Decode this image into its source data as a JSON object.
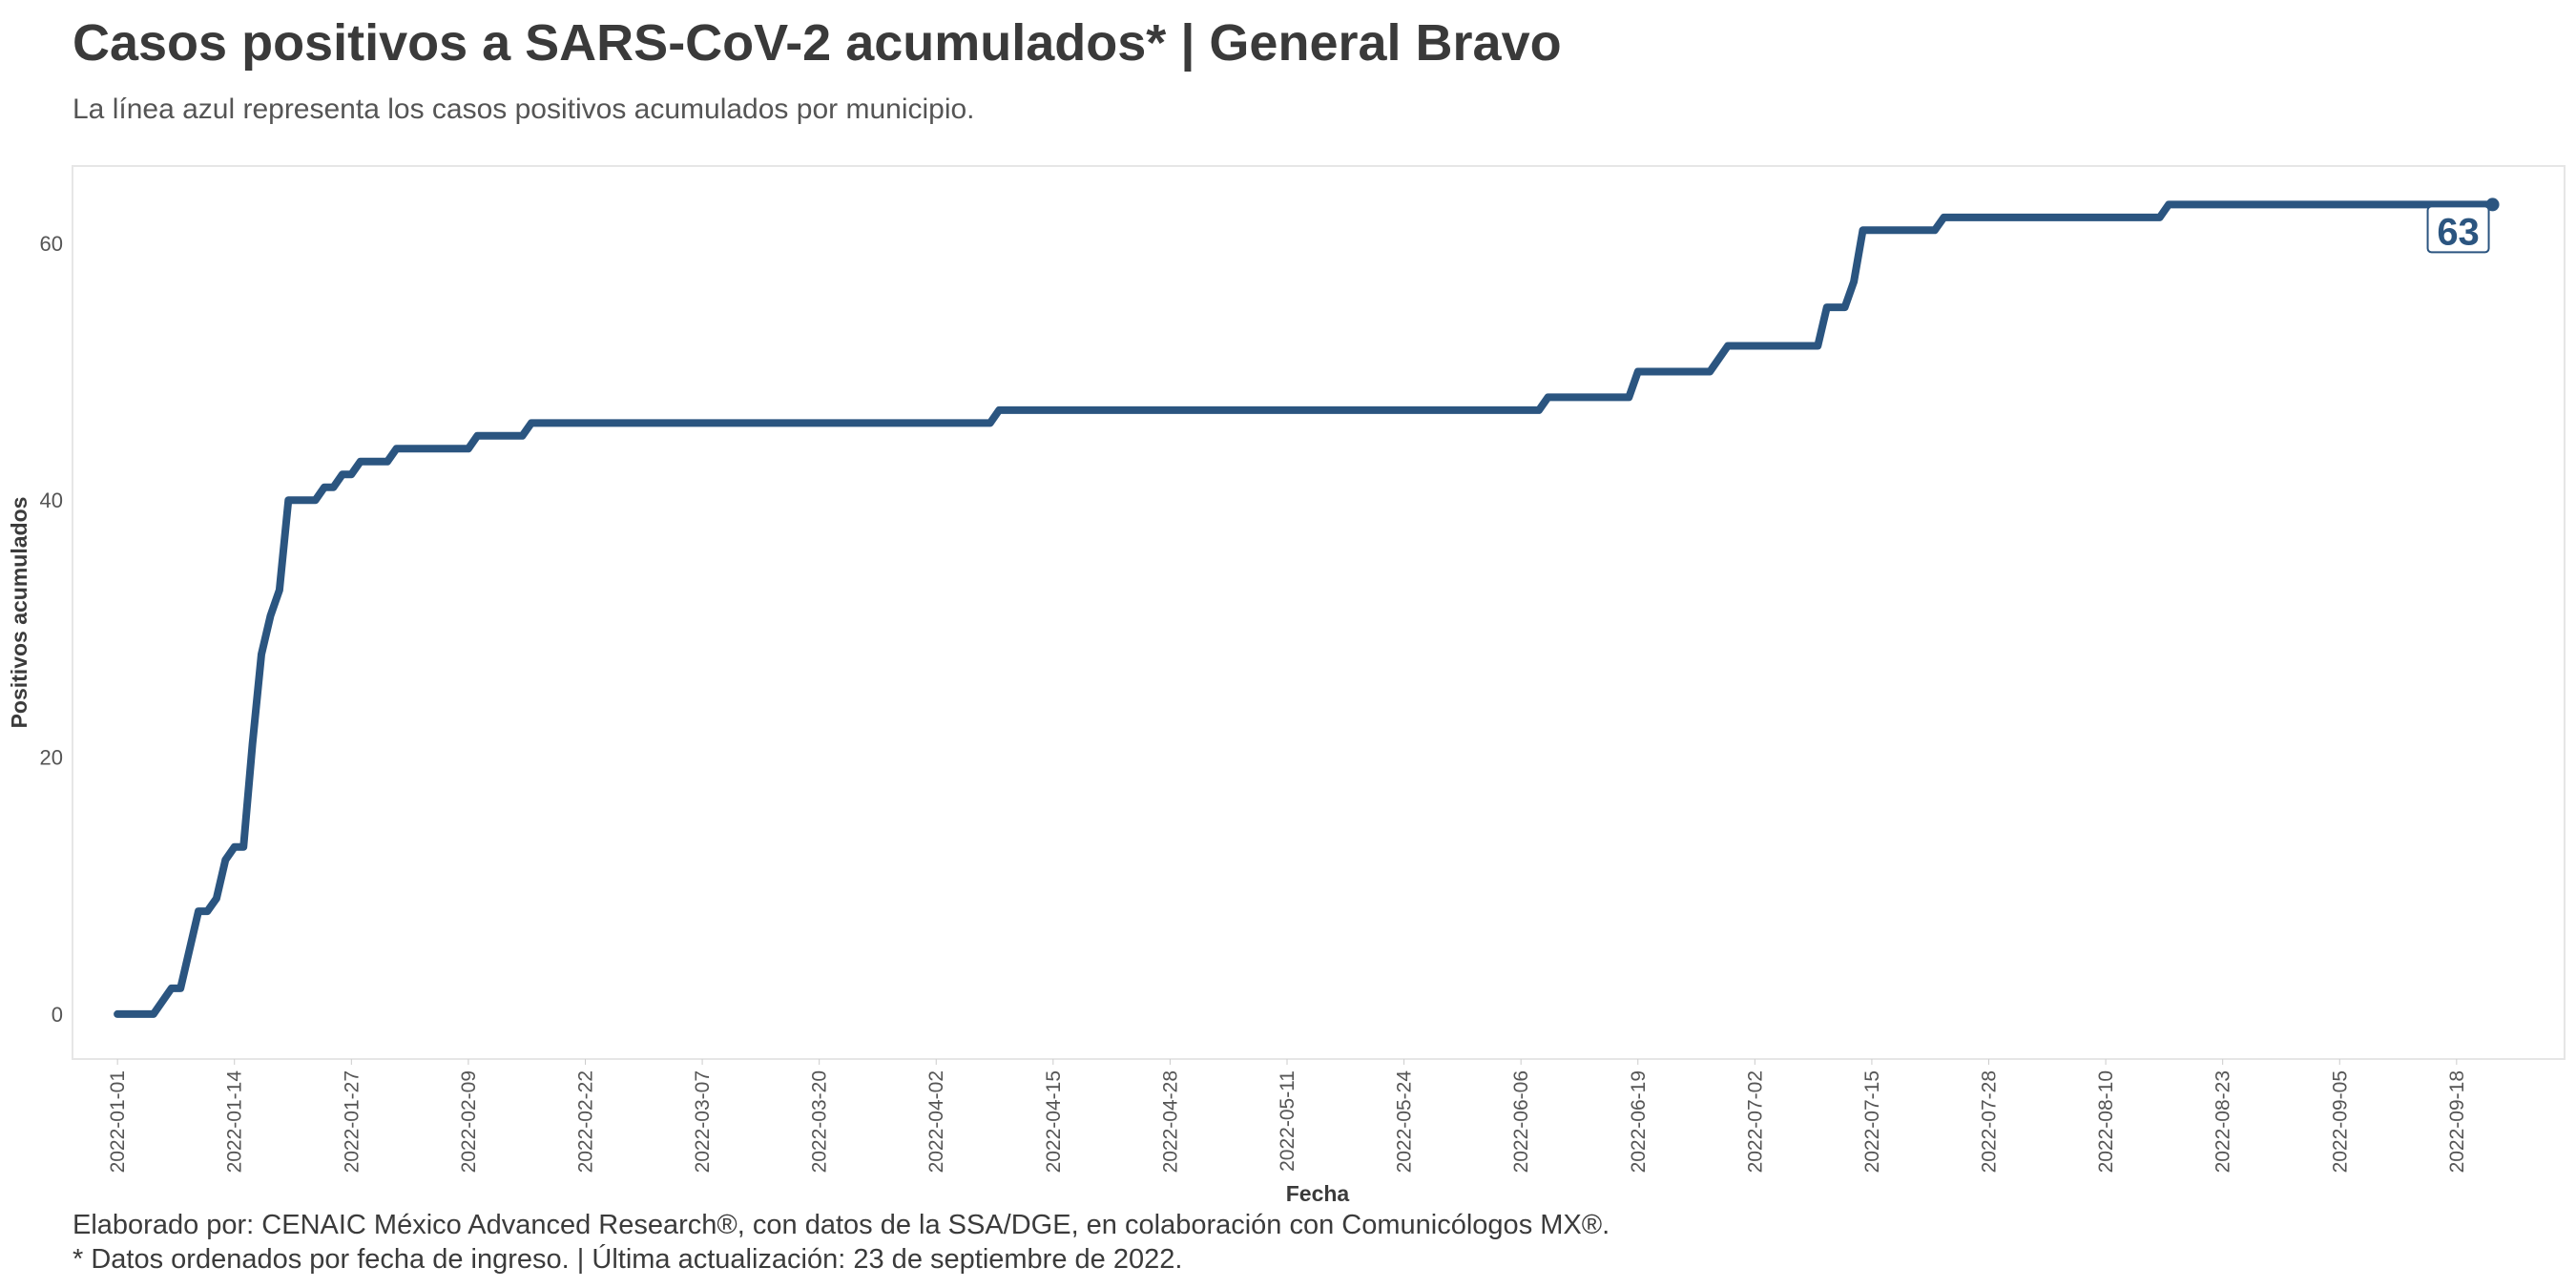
{
  "chart_data": {
    "type": "line",
    "title": "Casos positivos a SARS-CoV-2 acumulados* | General Bravo",
    "subtitle": "La línea azul representa los casos positivos acumulados por municipio.",
    "xlabel": "Fecha",
    "ylabel": "Positivos acumulados",
    "xlim": [
      "2021-12-27",
      "2022-09-30"
    ],
    "ylim": [
      -3.5,
      66
    ],
    "y_ticks": [
      0,
      20,
      40,
      60
    ],
    "x_ticks": [
      "2022-01-01",
      "2022-01-14",
      "2022-01-27",
      "2022-02-09",
      "2022-02-22",
      "2022-03-07",
      "2022-03-20",
      "2022-04-02",
      "2022-04-15",
      "2022-04-28",
      "2022-05-11",
      "2022-05-24",
      "2022-06-06",
      "2022-06-19",
      "2022-07-02",
      "2022-07-15",
      "2022-07-28",
      "2022-08-10",
      "2022-08-23",
      "2022-09-05",
      "2022-09-18"
    ],
    "grid": false,
    "line_color": "#2b5580",
    "end_label": "63",
    "series": [
      {
        "points": [
          [
            "2022-01-01",
            0
          ],
          [
            "2022-01-05",
            0
          ],
          [
            "2022-01-06",
            1
          ],
          [
            "2022-01-07",
            2
          ],
          [
            "2022-01-08",
            2
          ],
          [
            "2022-01-09",
            5
          ],
          [
            "2022-01-10",
            8
          ],
          [
            "2022-01-11",
            8
          ],
          [
            "2022-01-12",
            9
          ],
          [
            "2022-01-13",
            12
          ],
          [
            "2022-01-14",
            13
          ],
          [
            "2022-01-15",
            13
          ],
          [
            "2022-01-16",
            21
          ],
          [
            "2022-01-17",
            28
          ],
          [
            "2022-01-18",
            31
          ],
          [
            "2022-01-19",
            33
          ],
          [
            "2022-01-20",
            40
          ],
          [
            "2022-01-23",
            40
          ],
          [
            "2022-01-24",
            41
          ],
          [
            "2022-01-25",
            41
          ],
          [
            "2022-01-26",
            42
          ],
          [
            "2022-01-27",
            42
          ],
          [
            "2022-01-28",
            43
          ],
          [
            "2022-01-31",
            43
          ],
          [
            "2022-02-01",
            44
          ],
          [
            "2022-02-09",
            44
          ],
          [
            "2022-02-10",
            45
          ],
          [
            "2022-02-15",
            45
          ],
          [
            "2022-02-16",
            46
          ],
          [
            "2022-04-08",
            46
          ],
          [
            "2022-04-09",
            47
          ],
          [
            "2022-06-08",
            47
          ],
          [
            "2022-06-09",
            48
          ],
          [
            "2022-06-18",
            48
          ],
          [
            "2022-06-19",
            50
          ],
          [
            "2022-06-27",
            50
          ],
          [
            "2022-06-29",
            52
          ],
          [
            "2022-07-09",
            52
          ],
          [
            "2022-07-10",
            55
          ],
          [
            "2022-07-12",
            55
          ],
          [
            "2022-07-13",
            57
          ],
          [
            "2022-07-14",
            61
          ],
          [
            "2022-07-22",
            61
          ],
          [
            "2022-07-23",
            62
          ],
          [
            "2022-08-16",
            62
          ],
          [
            "2022-08-17",
            63
          ],
          [
            "2022-09-22",
            63
          ]
        ]
      }
    ]
  },
  "caption": {
    "line1": "Elaborado por: CENAIC México Advanced Research®, con datos de la SSA/DGE, en colaboración con Comunicólogos MX®.",
    "line2": "* Datos ordenados por fecha de ingreso. | Última actualización: 23 de septiembre de 2022."
  }
}
